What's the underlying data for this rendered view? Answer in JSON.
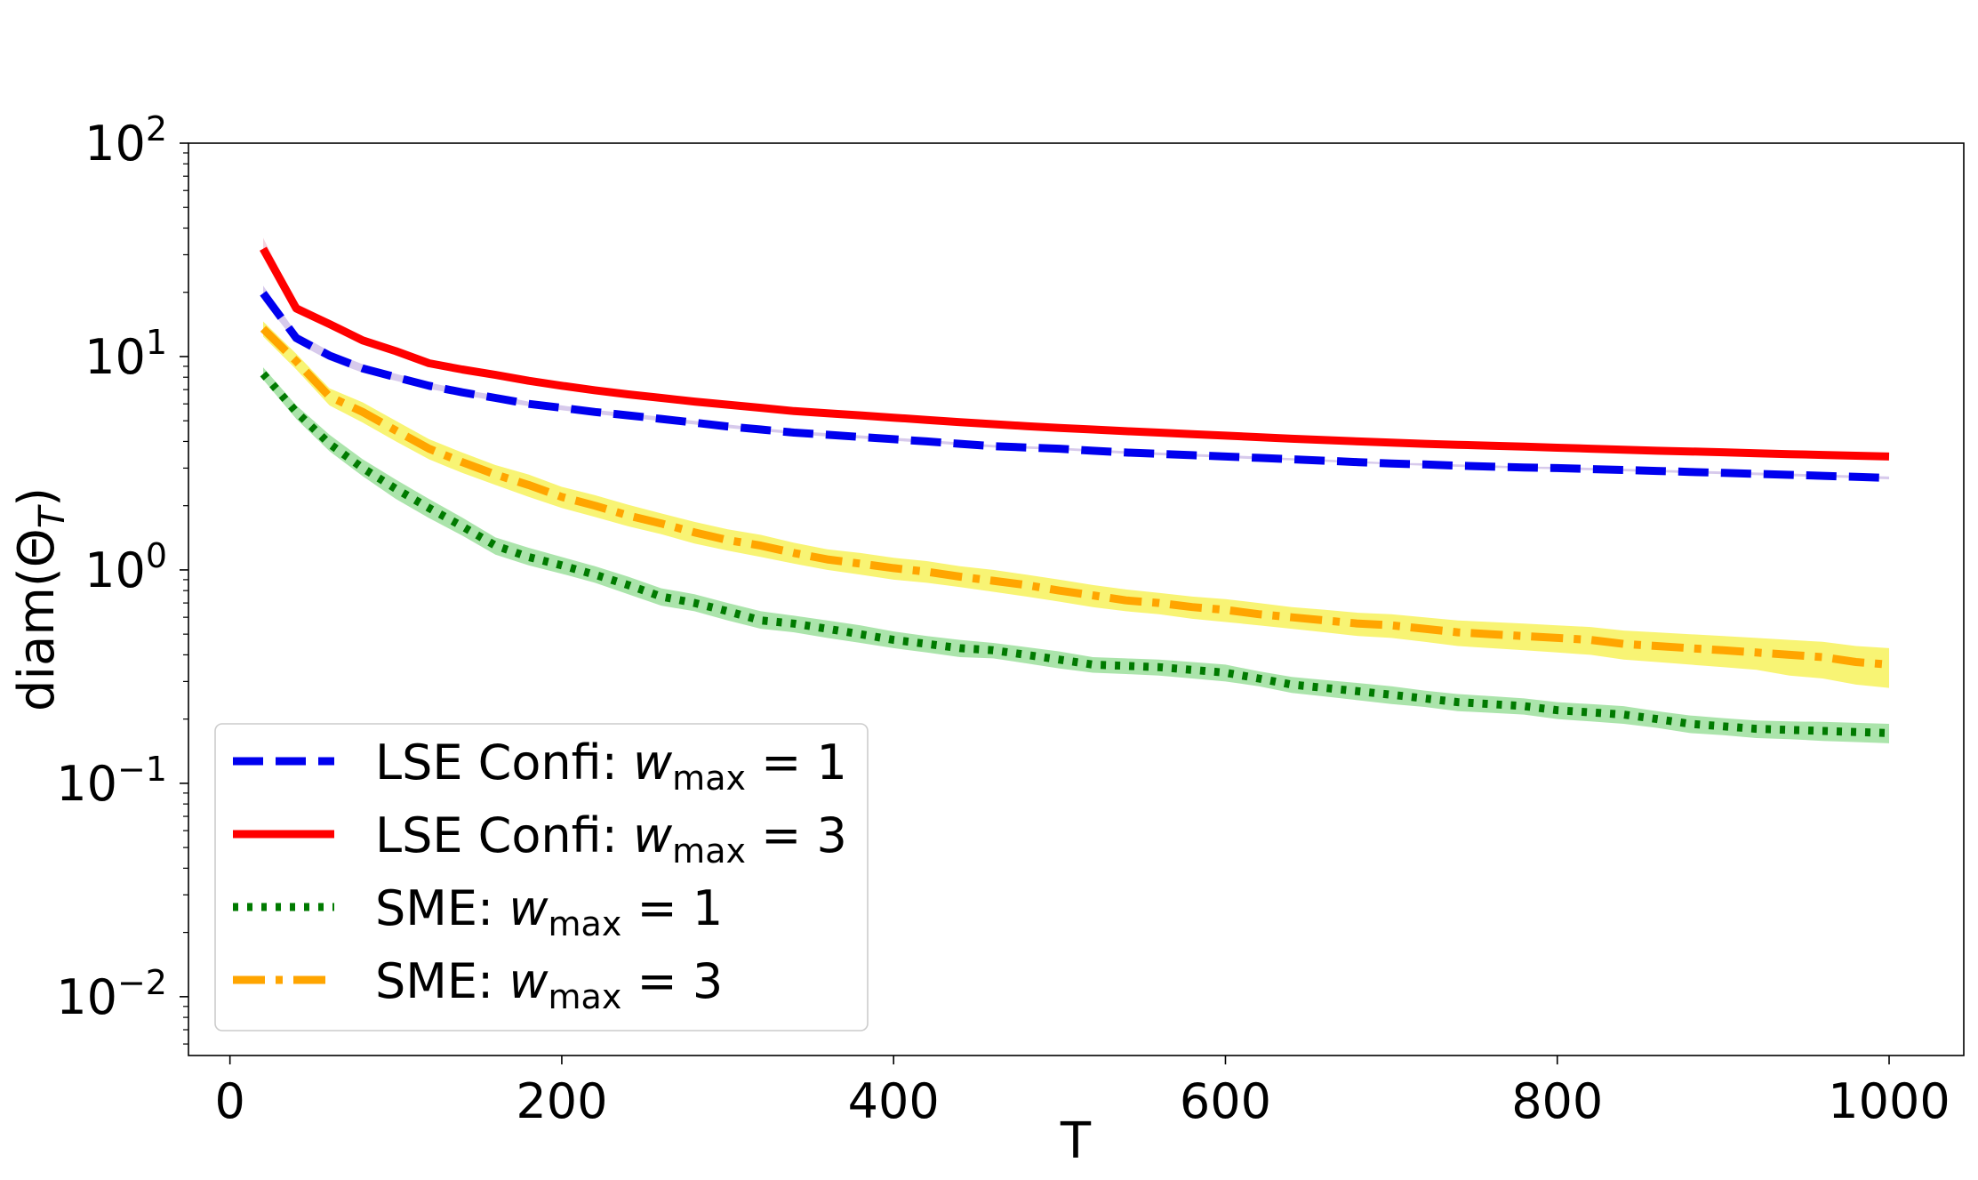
{
  "chart_data": {
    "type": "line",
    "title": "",
    "xlabel": "T",
    "ylabel_base": "diam(Θ",
    "ylabel_sub": "T",
    "ylabel_close": ")",
    "yscale": "log",
    "xlim": [
      -25,
      1045
    ],
    "ylim": [
      0.0053,
      100
    ],
    "xticks": [
      0,
      200,
      400,
      600,
      800,
      1000
    ],
    "xtick_labels": [
      "0",
      "200",
      "400",
      "600",
      "800",
      "1000"
    ],
    "yticks": [
      0.01,
      0.1,
      1,
      10,
      100
    ],
    "ytick_base": "10",
    "ytick_exponents": [
      "−2",
      "−1",
      "0",
      "1",
      "2"
    ],
    "legend_position": "lower-left",
    "x": [
      20,
      40,
      60,
      80,
      100,
      120,
      140,
      160,
      180,
      200,
      220,
      240,
      260,
      280,
      300,
      320,
      340,
      360,
      380,
      400,
      420,
      440,
      460,
      480,
      500,
      520,
      540,
      560,
      580,
      600,
      620,
      640,
      660,
      680,
      700,
      720,
      740,
      760,
      780,
      800,
      820,
      840,
      860,
      880,
      900,
      920,
      940,
      960,
      980,
      1000
    ],
    "series": [
      {
        "name": "LSE Confi",
        "legend_prefix": "LSE Confi: ",
        "w_max": "1",
        "color": "#0000ee",
        "band_color": "#c9b8e6",
        "style": "dashed",
        "values": [
          19.8,
          12.2,
          10.1,
          8.8,
          8.0,
          7.3,
          6.8,
          6.4,
          6.0,
          5.75,
          5.5,
          5.3,
          5.1,
          4.9,
          4.7,
          4.55,
          4.4,
          4.3,
          4.2,
          4.1,
          4.0,
          3.9,
          3.8,
          3.75,
          3.7,
          3.62,
          3.55,
          3.5,
          3.45,
          3.4,
          3.35,
          3.3,
          3.25,
          3.2,
          3.15,
          3.12,
          3.08,
          3.05,
          3.02,
          3.0,
          2.97,
          2.94,
          2.91,
          2.88,
          2.85,
          2.82,
          2.79,
          2.76,
          2.73,
          2.7
        ],
        "lower": [
          18.3,
          11.6,
          9.6,
          8.4,
          7.7,
          7.05,
          6.6,
          6.2,
          5.85,
          5.6,
          5.38,
          5.18,
          4.98,
          4.8,
          4.62,
          4.47,
          4.33,
          4.22,
          4.13,
          4.03,
          3.94,
          3.84,
          3.75,
          3.7,
          3.65,
          3.57,
          3.5,
          3.45,
          3.4,
          3.35,
          3.3,
          3.26,
          3.21,
          3.16,
          3.12,
          3.08,
          3.04,
          3.01,
          2.99,
          2.96,
          2.93,
          2.9,
          2.87,
          2.84,
          2.81,
          2.78,
          2.75,
          2.72,
          2.69,
          2.66
        ],
        "upper": [
          21.5,
          12.9,
          10.6,
          9.2,
          8.3,
          7.55,
          7.0,
          6.6,
          6.15,
          5.9,
          5.62,
          5.42,
          5.22,
          5.0,
          4.8,
          4.63,
          4.47,
          4.38,
          4.27,
          4.17,
          4.06,
          3.96,
          3.85,
          3.8,
          3.75,
          3.67,
          3.6,
          3.55,
          3.5,
          3.45,
          3.4,
          3.34,
          3.29,
          3.24,
          3.18,
          3.16,
          3.12,
          3.09,
          3.05,
          3.04,
          3.01,
          2.98,
          2.95,
          2.92,
          2.89,
          2.86,
          2.83,
          2.8,
          2.77,
          2.74
        ]
      },
      {
        "name": "LSE Confi",
        "legend_prefix": "LSE Confi: ",
        "w_max": "3",
        "color": "#ff0000",
        "band_color": "#f2c4d4",
        "style": "solid",
        "values": [
          32.0,
          16.8,
          14.2,
          11.9,
          10.6,
          9.3,
          8.7,
          8.2,
          7.7,
          7.3,
          6.95,
          6.65,
          6.4,
          6.15,
          5.95,
          5.75,
          5.55,
          5.42,
          5.3,
          5.17,
          5.05,
          4.93,
          4.82,
          4.72,
          4.63,
          4.55,
          4.47,
          4.4,
          4.33,
          4.26,
          4.19,
          4.12,
          4.06,
          4.0,
          3.95,
          3.9,
          3.86,
          3.82,
          3.78,
          3.74,
          3.7,
          3.66,
          3.62,
          3.59,
          3.56,
          3.52,
          3.49,
          3.46,
          3.43,
          3.4
        ],
        "lower": [
          29.5,
          16.0,
          13.7,
          11.5,
          10.3,
          9.05,
          8.5,
          8.0,
          7.52,
          7.14,
          6.8,
          6.52,
          6.27,
          6.03,
          5.84,
          5.65,
          5.45,
          5.33,
          5.21,
          5.08,
          4.97,
          4.85,
          4.74,
          4.64,
          4.56,
          4.48,
          4.4,
          4.33,
          4.26,
          4.19,
          4.13,
          4.06,
          4.0,
          3.94,
          3.89,
          3.84,
          3.8,
          3.76,
          3.72,
          3.69,
          3.65,
          3.61,
          3.57,
          3.54,
          3.51,
          3.47,
          3.44,
          3.41,
          3.38,
          3.35
        ],
        "upper": [
          36.0,
          17.8,
          14.8,
          12.4,
          11.0,
          9.6,
          8.95,
          8.45,
          7.92,
          7.5,
          7.12,
          6.8,
          6.55,
          6.3,
          6.08,
          5.87,
          5.67,
          5.53,
          5.41,
          5.27,
          5.14,
          5.02,
          4.91,
          4.81,
          4.71,
          4.63,
          4.55,
          4.48,
          4.41,
          4.34,
          4.26,
          4.19,
          4.13,
          4.07,
          4.02,
          3.97,
          3.93,
          3.88,
          3.84,
          3.8,
          3.76,
          3.72,
          3.68,
          3.65,
          3.62,
          3.58,
          3.55,
          3.52,
          3.49,
          3.46
        ]
      },
      {
        "name": "SME",
        "legend_prefix": "SME: ",
        "w_max": "1",
        "color": "#007a00",
        "band_color": "#8fdb8f",
        "style": "dotted",
        "values": [
          8.3,
          5.5,
          3.9,
          3.0,
          2.4,
          1.95,
          1.6,
          1.3,
          1.15,
          1.05,
          0.95,
          0.85,
          0.75,
          0.7,
          0.64,
          0.58,
          0.56,
          0.53,
          0.5,
          0.47,
          0.45,
          0.43,
          0.42,
          0.4,
          0.38,
          0.36,
          0.355,
          0.35,
          0.34,
          0.33,
          0.31,
          0.29,
          0.28,
          0.27,
          0.26,
          0.25,
          0.24,
          0.235,
          0.23,
          0.22,
          0.215,
          0.21,
          0.2,
          0.19,
          0.185,
          0.18,
          0.178,
          0.176,
          0.174,
          0.172
        ],
        "lower": [
          7.8,
          5.1,
          3.6,
          2.75,
          2.15,
          1.75,
          1.45,
          1.18,
          1.05,
          0.96,
          0.87,
          0.77,
          0.68,
          0.64,
          0.58,
          0.53,
          0.51,
          0.48,
          0.455,
          0.43,
          0.41,
          0.39,
          0.385,
          0.365,
          0.345,
          0.33,
          0.325,
          0.32,
          0.31,
          0.3,
          0.285,
          0.265,
          0.255,
          0.245,
          0.235,
          0.228,
          0.218,
          0.214,
          0.21,
          0.2,
          0.195,
          0.19,
          0.182,
          0.172,
          0.168,
          0.163,
          0.161,
          0.158,
          0.156,
          0.154
        ],
        "upper": [
          8.9,
          5.9,
          4.3,
          3.3,
          2.65,
          2.15,
          1.76,
          1.42,
          1.27,
          1.15,
          1.04,
          0.93,
          0.82,
          0.77,
          0.7,
          0.64,
          0.61,
          0.58,
          0.55,
          0.515,
          0.49,
          0.47,
          0.455,
          0.435,
          0.415,
          0.39,
          0.385,
          0.38,
          0.37,
          0.36,
          0.335,
          0.315,
          0.305,
          0.295,
          0.285,
          0.272,
          0.262,
          0.256,
          0.25,
          0.24,
          0.235,
          0.23,
          0.218,
          0.208,
          0.202,
          0.197,
          0.195,
          0.194,
          0.192,
          0.19
        ]
      },
      {
        "name": "SME",
        "legend_prefix": "SME: ",
        "w_max": "3",
        "color": "#ffa500",
        "band_color": "#f5f045",
        "style": "dashdot",
        "values": [
          13.5,
          9.5,
          6.5,
          5.5,
          4.5,
          3.7,
          3.2,
          2.8,
          2.5,
          2.2,
          2.0,
          1.8,
          1.65,
          1.5,
          1.38,
          1.3,
          1.2,
          1.12,
          1.07,
          1.02,
          0.98,
          0.93,
          0.89,
          0.85,
          0.8,
          0.76,
          0.72,
          0.7,
          0.67,
          0.65,
          0.62,
          0.6,
          0.58,
          0.56,
          0.55,
          0.53,
          0.51,
          0.5,
          0.49,
          0.48,
          0.47,
          0.45,
          0.44,
          0.43,
          0.42,
          0.41,
          0.4,
          0.39,
          0.37,
          0.36
        ],
        "lower": [
          12.4,
          8.7,
          5.9,
          4.9,
          4.0,
          3.3,
          2.85,
          2.5,
          2.2,
          1.95,
          1.77,
          1.6,
          1.47,
          1.33,
          1.23,
          1.15,
          1.07,
          1.0,
          0.95,
          0.9,
          0.87,
          0.83,
          0.79,
          0.75,
          0.71,
          0.67,
          0.64,
          0.62,
          0.59,
          0.57,
          0.55,
          0.53,
          0.51,
          0.49,
          0.48,
          0.46,
          0.44,
          0.43,
          0.42,
          0.41,
          0.4,
          0.38,
          0.37,
          0.36,
          0.35,
          0.34,
          0.32,
          0.31,
          0.29,
          0.28
        ],
        "upper": [
          14.6,
          10.3,
          7.1,
          6.1,
          5.0,
          4.1,
          3.55,
          3.1,
          2.8,
          2.45,
          2.24,
          2.02,
          1.84,
          1.68,
          1.55,
          1.46,
          1.34,
          1.25,
          1.2,
          1.14,
          1.1,
          1.04,
          1.0,
          0.95,
          0.9,
          0.85,
          0.81,
          0.78,
          0.75,
          0.73,
          0.7,
          0.67,
          0.65,
          0.63,
          0.62,
          0.6,
          0.58,
          0.57,
          0.56,
          0.55,
          0.54,
          0.52,
          0.51,
          0.5,
          0.49,
          0.48,
          0.47,
          0.46,
          0.44,
          0.43
        ]
      }
    ]
  }
}
